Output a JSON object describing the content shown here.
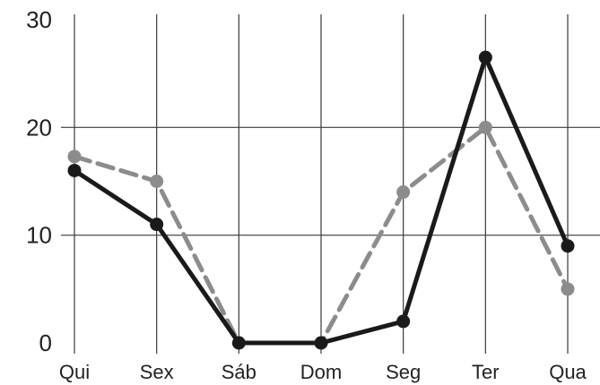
{
  "chart_data": {
    "type": "line",
    "title": "",
    "xlabel": "",
    "ylabel": "",
    "categories": [
      "Qui",
      "Sex",
      "Sáb",
      "Dom",
      "Seg",
      "Ter",
      "Qua"
    ],
    "ylim": [
      0,
      30
    ],
    "yticks": [
      "0",
      "10",
      "20",
      "30"
    ],
    "grid": true,
    "legend": "none",
    "series": [
      {
        "style": "solid",
        "color": "#1a1a1a",
        "values": [
          16,
          11,
          0,
          0,
          2,
          26.5,
          9
        ]
      },
      {
        "style": "dashed",
        "color": "#8c8c8c",
        "values": [
          17.3,
          15,
          0,
          0,
          14,
          20,
          5
        ]
      }
    ]
  }
}
